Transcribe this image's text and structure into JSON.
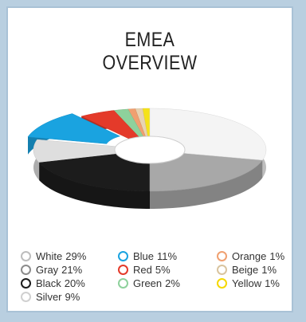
{
  "chart_data": {
    "type": "pie",
    "variant": "3d-donut",
    "title_lines": [
      "EMEA",
      "OVERVIEW"
    ],
    "slices": [
      {
        "name": "White",
        "value_label": "29%",
        "value": 29,
        "color": "#f4f4f4",
        "ring": "#bdbdbd"
      },
      {
        "name": "Gray",
        "value_label": "21%",
        "value": 21,
        "color": "#a8a8a8",
        "ring": "#8c8c8c"
      },
      {
        "name": "Black",
        "value_label": "20%",
        "value": 20,
        "color": "#1c1c1c",
        "ring": "#1c1c1c"
      },
      {
        "name": "Silver",
        "value_label": "9%",
        "value": 9,
        "color": "#dedede",
        "ring": "#d0d0d0"
      },
      {
        "name": "Blue",
        "value_label": "11%",
        "value": 11,
        "color": "#1aa3e0",
        "ring": "#1aa3e0"
      },
      {
        "name": "Red",
        "value_label": "5%",
        "value": 5,
        "color": "#e43a2a",
        "ring": "#e43a2a"
      },
      {
        "name": "Green",
        "value_label": "2%",
        "value": 2,
        "color": "#8ed19c",
        "ring": "#8ed19c"
      },
      {
        "name": "Orange",
        "value_label": "1%",
        "value": 1,
        "color": "#f0a070",
        "ring": "#f0a070"
      },
      {
        "name": "Beige",
        "value_label": "1%",
        "value": 1,
        "color": "#e8d3b2",
        "ring": "#d9c49f"
      },
      {
        "name": "Yellow",
        "value_label": "1%",
        "value": 1,
        "color": "#f5e21a",
        "ring": "#f5d800"
      }
    ],
    "exploded": [
      "Blue"
    ],
    "legend_placement": "bottom"
  }
}
